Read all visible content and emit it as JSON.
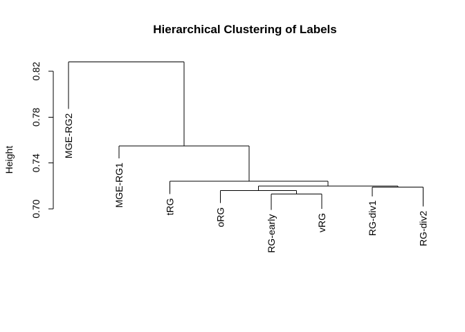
{
  "chart_data": {
    "type": "dendrogram",
    "title": "Hierarchical Clustering of Labels",
    "ylabel": "Height",
    "xlabel": "",
    "ylim": [
      0.7,
      0.82
    ],
    "yticks": [
      0.7,
      0.74,
      0.78,
      0.82
    ],
    "ytick_labels": [
      "0.70",
      "0.74",
      "0.78",
      "0.82"
    ],
    "leaves": [
      {
        "label": "MGE-RG2",
        "top": 0.787
      },
      {
        "label": "MGE-RG1",
        "top": 0.744
      },
      {
        "label": "tRG",
        "top": 0.713
      },
      {
        "label": "oRG",
        "top": 0.705
      },
      {
        "label": "RG-early",
        "top": 0.699
      },
      {
        "label": "vRG",
        "top": 0.7
      },
      {
        "label": "RG-div1",
        "top": 0.711
      },
      {
        "label": "RG-div2",
        "top": 0.702
      }
    ],
    "merges": [
      {
        "left": 4,
        "right": 5,
        "height": 0.713
      },
      {
        "left": 3,
        "right": "m0",
        "height": 0.716
      },
      {
        "left": 6,
        "right": 7,
        "height": 0.719
      },
      {
        "left": "m1",
        "right": "m2",
        "height": 0.72
      },
      {
        "left": 2,
        "right": "m3",
        "height": 0.724
      },
      {
        "left": 1,
        "right": "m4",
        "height": 0.755
      },
      {
        "left": 0,
        "right": "m5",
        "height": 0.828
      }
    ]
  }
}
